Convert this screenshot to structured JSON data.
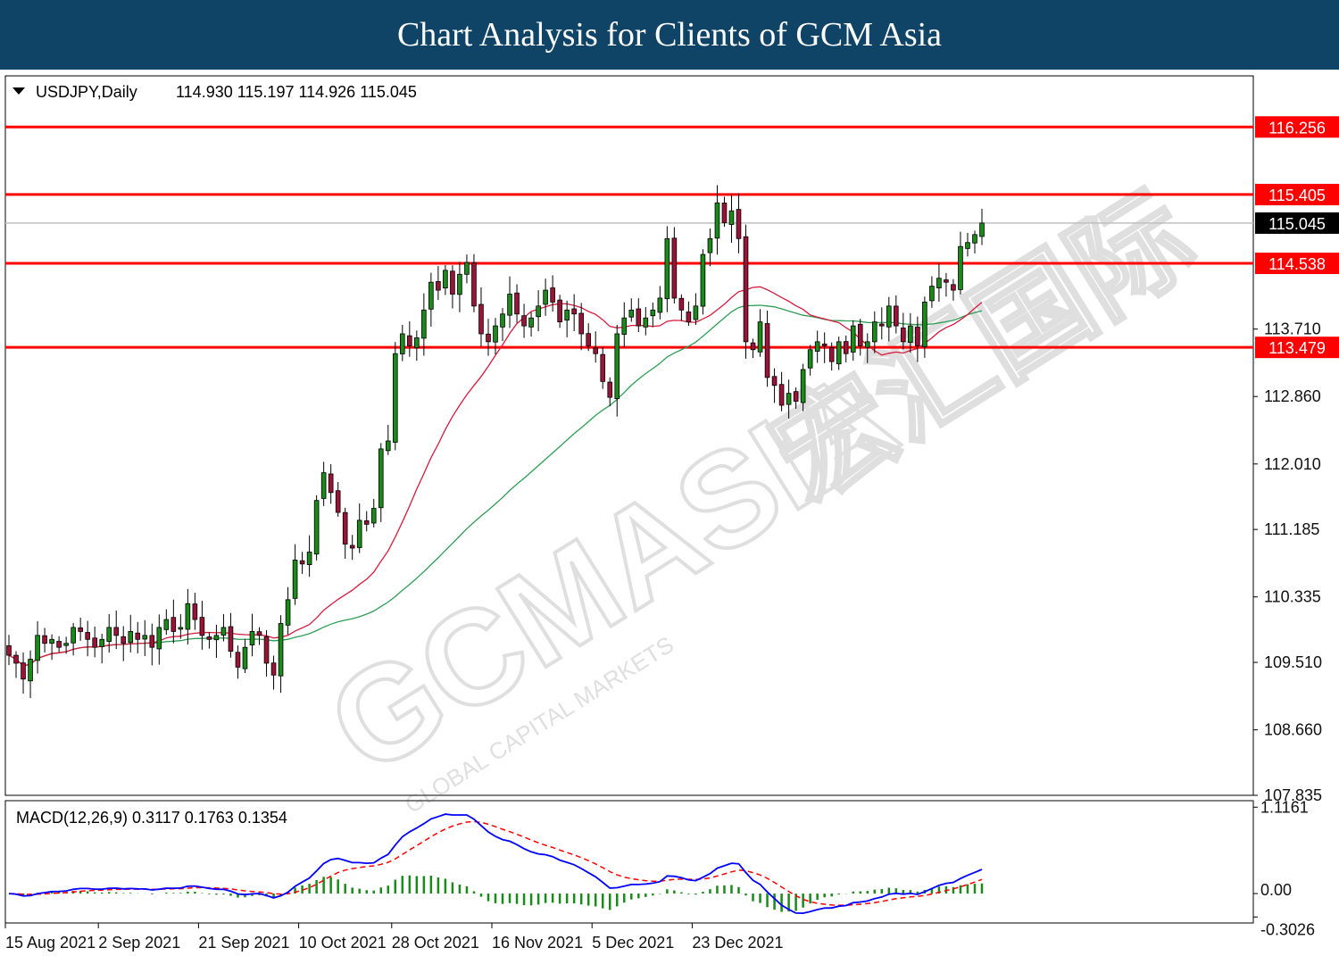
{
  "banner": {
    "title": "Chart Analysis for Clients of GCM Asia"
  },
  "watermark": {
    "text": "GCMASIA",
    "chinese": "宏汇国际",
    "subtext": "GLOBAL CAPITAL MARKETS"
  },
  "chart_data": [
    {
      "type": "candlestick",
      "symbol_label": "USDJPY,Daily",
      "ohlc_label": "114.930 115.197 114.926 115.045",
      "current_price": 115.045,
      "ylim": [
        107.835,
        116.9
      ],
      "y_ticks": [
        "113.710",
        "112.860",
        "112.010",
        "111.185",
        "110.335",
        "109.510",
        "108.660",
        "107.835"
      ],
      "x_ticks": [
        "15 Aug 2021",
        "2 Sep 2021",
        "21 Sep 2021",
        "10 Oct 2021",
        "28 Oct 2021",
        "16 Nov 2021",
        "5 Dec 2021",
        "23 Dec 2021"
      ],
      "levels": [
        {
          "label": "116.256",
          "value": 116.256,
          "color": "#ff0000"
        },
        {
          "label": "115.405",
          "value": 115.405,
          "color": "#ff0000"
        },
        {
          "label": "114.538",
          "value": 114.538,
          "color": "#ff0000"
        },
        {
          "label": "113.479",
          "value": 113.479,
          "color": "#ff0000"
        }
      ],
      "current_label": "115.045",
      "bull_color": "#1a8a1a",
      "bear_color": "#9a1438",
      "ma_fast_color": "#d81b3c",
      "ma_slow_color": "#2e9e55",
      "closes": [
        109.6,
        109.5,
        109.3,
        109.55,
        109.85,
        109.75,
        109.8,
        109.7,
        109.75,
        109.95,
        109.9,
        109.8,
        109.7,
        109.8,
        109.95,
        109.85,
        109.75,
        109.9,
        109.8,
        109.85,
        109.7,
        109.95,
        110.05,
        109.9,
        109.95,
        110.25,
        110.05,
        109.85,
        109.8,
        109.85,
        109.95,
        109.65,
        109.45,
        109.7,
        109.9,
        109.85,
        109.5,
        109.35,
        110.0,
        110.3,
        110.8,
        110.75,
        110.9,
        111.55,
        111.9,
        111.65,
        111.4,
        111.0,
        110.95,
        111.3,
        111.25,
        111.45,
        112.2,
        112.3,
        113.4,
        113.65,
        113.5,
        113.6,
        113.95,
        114.3,
        114.2,
        114.45,
        114.15,
        114.4,
        114.55,
        114.0,
        113.65,
        113.55,
        113.75,
        113.9,
        114.15,
        113.9,
        113.75,
        113.85,
        114.0,
        114.2,
        114.05,
        113.8,
        113.95,
        113.9,
        113.65,
        113.5,
        113.4,
        113.05,
        112.85,
        113.65,
        113.85,
        113.95,
        113.75,
        113.85,
        113.95,
        114.1,
        114.85,
        114.1,
        113.95,
        113.8,
        114.0,
        114.65,
        114.85,
        115.3,
        115.05,
        115.2,
        114.85,
        113.55,
        113.45,
        113.8,
        113.1,
        113.0,
        112.75,
        112.9,
        112.8,
        113.2,
        113.45,
        113.55,
        113.5,
        113.3,
        113.55,
        113.4,
        113.75,
        113.5,
        113.55,
        113.8,
        113.75,
        114.0,
        113.75,
        113.55,
        113.75,
        113.5,
        114.05,
        114.25,
        114.35,
        114.3,
        114.2,
        114.75,
        114.8,
        114.9,
        115.045
      ],
      "macd_label": "MACD(12,26,9) 0.3117 0.1763 0.1354",
      "macd_ylim": [
        -0.38,
        1.2
      ],
      "macd_ticks": [
        "1.1161",
        "0.00",
        "-0.3026"
      ],
      "macd_line_color": "#0000ff",
      "signal_line_color": "#ff0000",
      "hist_color": "#1a8a1a"
    }
  ]
}
